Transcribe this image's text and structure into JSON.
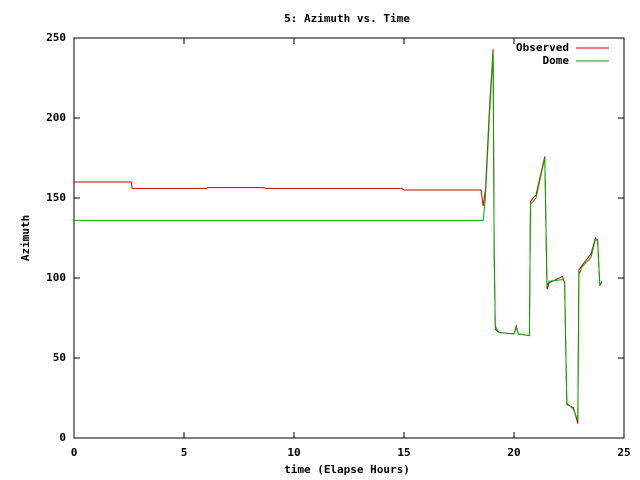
{
  "chart_data": {
    "type": "line",
    "title": "5: Azimuth vs. Time",
    "x_label": "time (Elapse Hours)",
    "y_label": "Azimuth",
    "x": [
      0,
      2.6,
      2.65,
      6,
      6.1,
      8.6,
      8.7,
      14.9,
      15,
      18.5,
      18.6,
      18.7,
      18.9,
      19.05,
      19.1,
      19.15,
      19.3,
      20,
      20.1,
      20.2,
      20.7,
      20.75,
      21,
      21.4,
      21.5,
      21.6,
      22.2,
      22.3,
      22.4,
      22.7,
      22.9,
      22.95,
      23.1,
      23.5,
      23.7,
      23.8,
      23.9,
      24
    ],
    "series": [
      {
        "name": "Observed",
        "color": "#cc0000",
        "values": [
          160,
          160,
          156,
          156,
          156.5,
          156.5,
          156,
          156,
          155,
          155,
          145,
          155,
          210,
          243,
          113,
          68,
          66,
          65,
          70,
          65,
          64,
          148,
          152,
          176,
          93,
          97,
          101,
          97,
          21,
          19,
          9,
          105,
          108,
          115,
          125,
          123,
          95,
          98
        ]
      },
      {
        "name": "Dome",
        "color": "#00aa00",
        "values": [
          136,
          136,
          136,
          136,
          136,
          136,
          136,
          136,
          136,
          136,
          136,
          150,
          205,
          241,
          115,
          70,
          66,
          65,
          69,
          65,
          64,
          146,
          150,
          175,
          95,
          98,
          99,
          98,
          22,
          18,
          11,
          102,
          107,
          113,
          124,
          124,
          96,
          97
        ]
      }
    ],
    "xlim": [
      0,
      25
    ],
    "xticks": [
      0,
      5,
      10,
      15,
      20,
      25
    ],
    "ylim": [
      0,
      250
    ],
    "yticks": [
      0,
      50,
      100,
      150,
      200,
      250
    ],
    "legend": "top-right"
  }
}
